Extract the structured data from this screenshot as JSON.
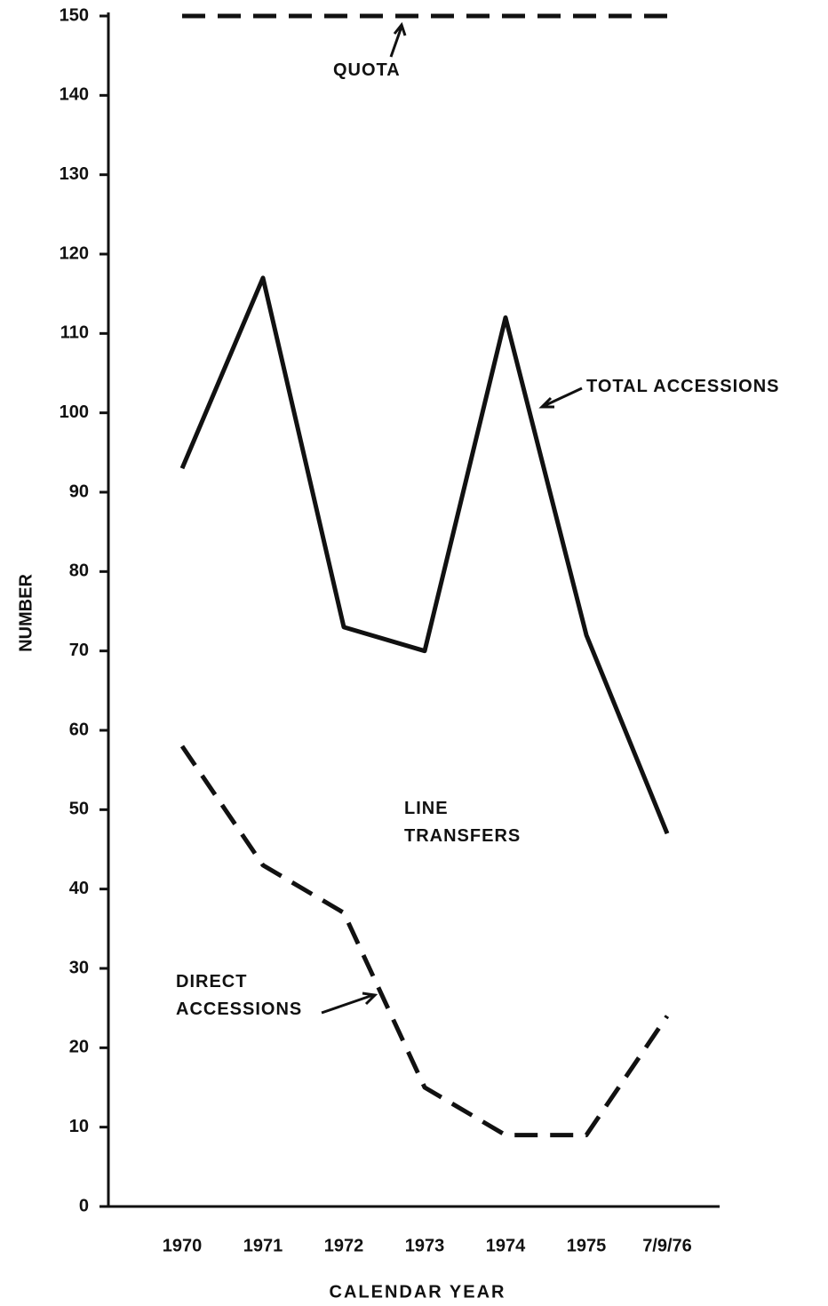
{
  "chart_data": {
    "type": "line",
    "categories": [
      "1970",
      "1971",
      "1972",
      "1973",
      "1974",
      "1975",
      "7/9/76"
    ],
    "series": [
      {
        "name": "QUOTA",
        "color": "#111111",
        "line_style": "dashed",
        "values": [
          150,
          150,
          150,
          150,
          150,
          150,
          150
        ]
      },
      {
        "name": "TOTAL ACCESSIONS",
        "color": "#111111",
        "line_style": "solid",
        "values": [
          93,
          117,
          73,
          70,
          112,
          72,
          47
        ]
      },
      {
        "name": "DIRECT ACCESSIONS",
        "color": "#111111",
        "line_style": "dashed",
        "values": [
          58,
          43,
          37,
          15,
          9,
          9,
          24
        ]
      }
    ],
    "annotations": [
      "LINE TRANSFERS"
    ],
    "y_label": "NUMBER",
    "x_label": "CALENDAR YEAR",
    "ylim": [
      0,
      150
    ],
    "yticks": [
      0,
      10,
      20,
      30,
      40,
      50,
      60,
      70,
      80,
      90,
      100,
      110,
      120,
      130,
      140,
      150
    ],
    "grid": false
  }
}
